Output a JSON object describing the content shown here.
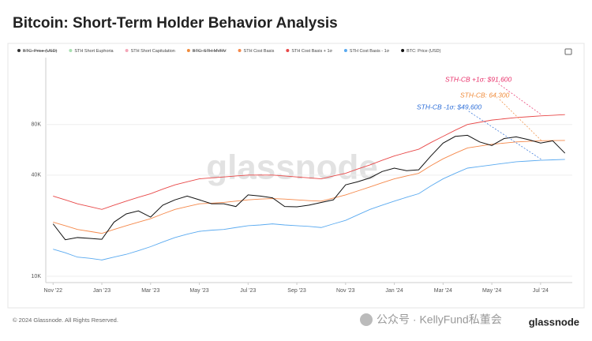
{
  "chart_data": {
    "type": "line",
    "title": "Bitcoin: Short-Term Holder Behavior Analysis",
    "footer": "© 2024 Glassnode. All Rights Reserved.",
    "watermark": "glassnode",
    "brand": "glassnode",
    "wechat": "公众号 · KellyFund私董会",
    "log_scale": true,
    "grid": true,
    "legend_only": [
      {
        "name": "BTC: Price (USD)",
        "color": "#333333",
        "struck": true
      },
      {
        "name": "STH Short Euphoria",
        "color": "#a8e0b0",
        "struck": false
      },
      {
        "name": "STH Short Capitulation",
        "color": "#f4a6b8",
        "struck": false
      },
      {
        "name": "BTC: STH-MVRV",
        "color": "#f08c3c",
        "struck": true
      }
    ],
    "x": [
      0,
      0.5,
      1,
      1.5,
      2,
      2.5,
      3,
      3.5,
      4,
      4.5,
      5,
      5.5,
      6,
      6.5,
      7,
      7.5,
      8,
      8.5,
      9,
      9.5,
      10,
      10.5,
      11,
      11.5,
      12,
      12.5,
      13,
      13.5,
      14,
      14.5,
      15,
      15.5,
      16,
      16.5,
      17,
      17.5,
      18,
      18.5,
      19,
      19.5,
      20,
      20.5,
      21
    ],
    "xlim": [
      -0.3,
      21.3
    ],
    "xticks": [
      {
        "value": 0,
        "label": "Nov '22"
      },
      {
        "value": 2,
        "label": "Jan '23"
      },
      {
        "value": 4,
        "label": "Mar '23"
      },
      {
        "value": 6,
        "label": "May '23"
      },
      {
        "value": 8,
        "label": "Jul '23"
      },
      {
        "value": 10,
        "label": "Sep '23"
      },
      {
        "value": 12,
        "label": "Nov '23"
      },
      {
        "value": 14,
        "label": "Jan '24"
      },
      {
        "value": 16,
        "label": "Mar '24"
      },
      {
        "value": 18,
        "label": "May '24"
      },
      {
        "value": 20,
        "label": "Jul '24"
      }
    ],
    "ylim": [
      10000,
      200000
    ],
    "yticks": [
      {
        "value": 10000,
        "label": "10K"
      },
      {
        "value": 40000,
        "label": "40K"
      },
      {
        "value": 80000,
        "label": "80K"
      }
    ],
    "series": [
      {
        "name": "STH Cost Basis",
        "color": "#f5884a",
        "values": [
          21000,
          20000,
          19000,
          18500,
          18000,
          19000,
          20000,
          21000,
          22000,
          23500,
          25000,
          26000,
          27000,
          27200,
          27500,
          28000,
          28500,
          28800,
          29000,
          28800,
          28500,
          28200,
          28000,
          29200,
          30500,
          32200,
          34000,
          36000,
          38000,
          39500,
          41000,
          45500,
          50000,
          54000,
          58000,
          59500,
          61000,
          62000,
          63000,
          63500,
          64000,
          64200,
          64300
        ]
      },
      {
        "name": "STH Cost Basis + 1σ",
        "color": "#e84848",
        "values": [
          30000,
          28500,
          27000,
          26000,
          25000,
          26500,
          28000,
          29500,
          31000,
          33000,
          35000,
          36500,
          38000,
          38500,
          39000,
          39500,
          40000,
          40000,
          40000,
          39500,
          39000,
          38500,
          38000,
          39500,
          41000,
          43500,
          46000,
          49000,
          52000,
          54500,
          57000,
          62500,
          68000,
          74000,
          80000,
          82500,
          85000,
          86500,
          88000,
          89000,
          90000,
          90800,
          91600
        ]
      },
      {
        "name": "STH Cost Basis - 1σ",
        "color": "#5aaaf0",
        "values": [
          14500,
          13800,
          13000,
          12800,
          12500,
          13000,
          13500,
          14200,
          15000,
          16000,
          17000,
          17800,
          18500,
          18800,
          19000,
          19500,
          20000,
          20200,
          20500,
          20200,
          20000,
          19800,
          19500,
          20500,
          21500,
          23200,
          25000,
          26500,
          28000,
          29500,
          31000,
          34500,
          38000,
          41000,
          44000,
          45000,
          46000,
          47000,
          48000,
          48500,
          49000,
          49300,
          49600
        ]
      },
      {
        "name": "BTC: Price (USD)",
        "color": "#111111",
        "values": [
          20500,
          16500,
          17000,
          16800,
          16600,
          21000,
          23500,
          24500,
          22500,
          26500,
          28500,
          30000,
          28500,
          27000,
          27000,
          26000,
          30500,
          30000,
          29300,
          26000,
          25900,
          26500,
          27500,
          28500,
          35000,
          36500,
          38500,
          42000,
          44000,
          42500,
          43000,
          52000,
          62000,
          68000,
          69000,
          63000,
          60000,
          66000,
          67500,
          65000,
          62000,
          64000,
          54000
        ]
      }
    ],
    "annotations": [
      {
        "text": "STH-CB +1σ: $91,600",
        "color": "#e8306a"
      },
      {
        "text": "STH-CB: 64,300",
        "color": "#f08c3c"
      },
      {
        "text": "STH-CB -1σ: $49,600",
        "color": "#2e6fd8"
      }
    ]
  }
}
